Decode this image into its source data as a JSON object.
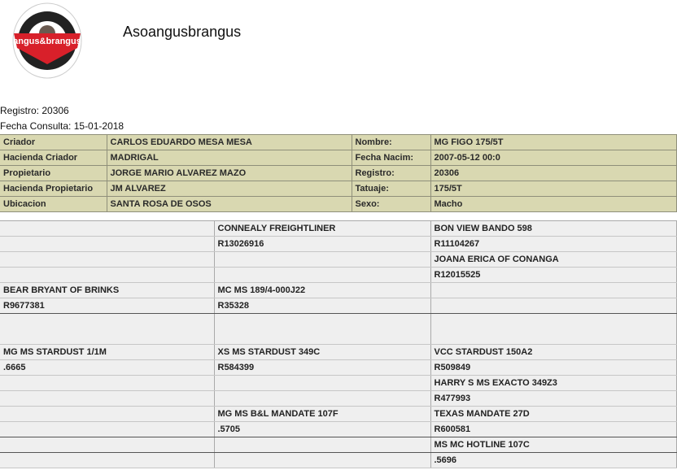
{
  "header": {
    "logo_text": "CERTIFICADO angus & brangus ASOCIACION",
    "title": "Asoangusbrangus"
  },
  "meta": {
    "registro": "Registro: 20306",
    "fecha": "Fecha Consulta: 15-01-2018"
  },
  "info": [
    [
      "Criador",
      "CARLOS EDUARDO MESA MESA",
      "Nombre:",
      "MG FIGO 175/5T"
    ],
    [
      "Hacienda Criador",
      "MADRIGAL",
      "Fecha Nacim:",
      "2007-05-12 00:0"
    ],
    [
      "Propietario",
      "JORGE MARIO ALVAREZ MAZO",
      "Registro:",
      "20306"
    ],
    [
      "Hacienda Propietario",
      "JM ALVAREZ",
      "Tatuaje:",
      "175/5T"
    ],
    [
      "Ubicacion",
      "SANTA ROSA DE OSOS",
      "Sexo:",
      "Macho"
    ]
  ],
  "pedigree": [
    [
      "",
      "CONNEALY FREIGHTLINER",
      "BON VIEW BANDO 598"
    ],
    [
      "",
      "R13026916",
      "R11104267"
    ],
    [
      "",
      "",
      "JOANA ERICA OF CONANGA"
    ],
    [
      "",
      "",
      "R12015525"
    ],
    [
      "BEAR BRYANT OF BRINKS",
      "MC MS 189/4-000J22",
      ""
    ],
    [
      "R9677381",
      "R35328",
      ""
    ],
    [
      "",
      "",
      ""
    ],
    [
      "MG MS STARDUST 1/1M",
      "XS MS STARDUST 349C",
      "VCC STARDUST 150A2"
    ],
    [
      ".6665",
      "R584399",
      "R509849"
    ],
    [
      "",
      "",
      "HARRY S MS EXACTO 349Z3"
    ],
    [
      "",
      "",
      "R477993"
    ],
    [
      "",
      "MG MS B&L MANDATE 107F",
      "TEXAS MANDATE 27D"
    ],
    [
      "",
      ".5705",
      "R600581"
    ],
    [
      "",
      "",
      "MS MC HOTLINE 107C"
    ],
    [
      "",
      "",
      ".5696"
    ]
  ]
}
